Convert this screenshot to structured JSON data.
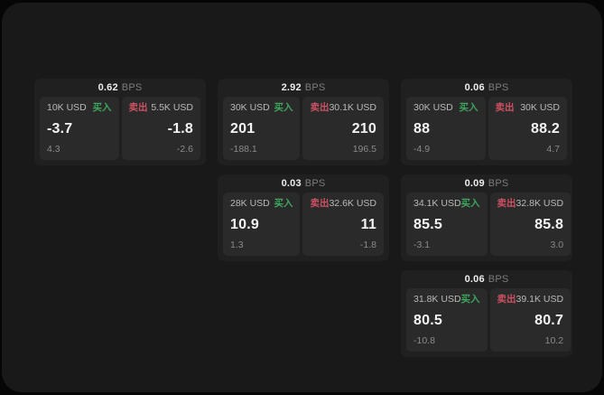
{
  "colors": {
    "buy": "#3da65c",
    "sell": "#cc5162",
    "card_background": "#202020",
    "panel_background": "#2a2a2a",
    "app_background": "#191919"
  },
  "cards": [
    {
      "bps": "0.62",
      "bps_unit": "BPS",
      "buy": {
        "amount": "10K USD",
        "side": "买入",
        "value": "-3.7",
        "sub": "4.3"
      },
      "sell": {
        "side": "卖出",
        "amount": "5.5K USD",
        "value": "-1.8",
        "sub": "-2.6"
      }
    },
    {
      "bps": "2.92",
      "bps_unit": "BPS",
      "buy": {
        "amount": "30K USD",
        "side": "买入",
        "value": "201",
        "sub": "-188.1"
      },
      "sell": {
        "side": "卖出",
        "amount": "30.1K USD",
        "value": "210",
        "sub": "196.5"
      }
    },
    {
      "bps": "0.06",
      "bps_unit": "BPS",
      "buy": {
        "amount": "30K USD",
        "side": "买入",
        "value": "88",
        "sub": "-4.9"
      },
      "sell": {
        "side": "卖出",
        "amount": "30K USD",
        "value": "88.2",
        "sub": "4.7"
      }
    },
    {
      "bps": "0.03",
      "bps_unit": "BPS",
      "buy": {
        "amount": "28K USD",
        "side": "买入",
        "value": "10.9",
        "sub": "1.3"
      },
      "sell": {
        "side": "卖出",
        "amount": "32.6K USD",
        "value": "11",
        "sub": "-1.8"
      }
    },
    {
      "bps": "0.09",
      "bps_unit": "BPS",
      "buy": {
        "amount": "34.1K USD",
        "side": "买入",
        "value": "85.5",
        "sub": "-3.1"
      },
      "sell": {
        "side": "卖出",
        "amount": "32.8K USD",
        "value": "85.8",
        "sub": "3.0"
      }
    },
    {
      "bps": "0.06",
      "bps_unit": "BPS",
      "buy": {
        "amount": "31.8K USD",
        "side": "买入",
        "value": "80.5",
        "sub": "-10.8"
      },
      "sell": {
        "side": "卖出",
        "amount": "39.1K USD",
        "value": "80.7",
        "sub": "10.2"
      }
    }
  ]
}
